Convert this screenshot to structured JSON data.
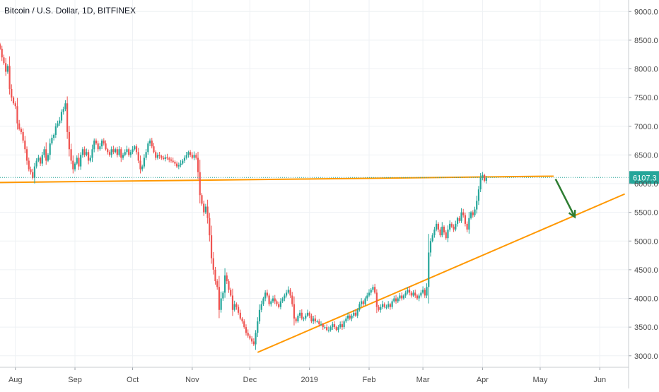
{
  "header": {
    "title": "Bitcoin / U.S. Dollar, 1D, BITFINEX"
  },
  "price_label": {
    "text": "6107.3",
    "color": "#26a69a"
  },
  "colors": {
    "up": "#26a69a",
    "down": "#ef5350",
    "trend": "#ff9800",
    "arrow": "#2e7d32",
    "grid": "#eef1f4",
    "axis_text": "#4a4a4a"
  },
  "chart_data": {
    "type": "candlestick",
    "title": "Bitcoin / U.S. Dollar, 1D, BITFINEX",
    "xlabel": "",
    "ylabel": "",
    "ylim": [
      2800,
      9200
    ],
    "y_ticks": [
      3000,
      3500,
      4000,
      4500,
      5000,
      5500,
      6000,
      6500,
      7000,
      7500,
      8000,
      8500,
      9000
    ],
    "y_tick_labels": [
      "3000.0",
      "3500.0",
      "4000.0",
      "4500.0",
      "5000.0",
      "5500.0",
      "6000.0",
      "6500.0",
      "7000.0",
      "7500.0",
      "8000.0",
      "8500.0",
      "9000.0"
    ],
    "x_range": [
      "2018-07-24",
      "2019-06-16"
    ],
    "x_ticks": [
      {
        "date": "2018-08-01",
        "label": "Aug"
      },
      {
        "date": "2018-09-01",
        "label": "Sep"
      },
      {
        "date": "2018-10-01",
        "label": "Oct"
      },
      {
        "date": "2018-11-01",
        "label": "Nov"
      },
      {
        "date": "2018-12-01",
        "label": "Dec"
      },
      {
        "date": "2019-01-01",
        "label": "2019"
      },
      {
        "date": "2019-02-01",
        "label": "Feb"
      },
      {
        "date": "2019-03-01",
        "label": "Mar"
      },
      {
        "date": "2019-04-01",
        "label": "Apr"
      },
      {
        "date": "2019-05-01",
        "label": "May"
      },
      {
        "date": "2019-06-01",
        "label": "Jun"
      }
    ],
    "start_date": "2018-07-24",
    "closes": [
      8350,
      8200,
      8100,
      7950,
      8050,
      7650,
      7500,
      7400,
      7350,
      7050,
      6950,
      6900,
      6750,
      6600,
      6400,
      6250,
      6200,
      6100,
      6300,
      6400,
      6450,
      6350,
      6500,
      6600,
      6400,
      6500,
      6700,
      6800,
      6850,
      7000,
      7050,
      7100,
      7250,
      7300,
      7400,
      6900,
      6600,
      6400,
      6250,
      6350,
      6450,
      6300,
      6500,
      6600,
      6500,
      6550,
      6400,
      6450,
      6600,
      6750,
      6700,
      6600,
      6650,
      6750,
      6700,
      6600,
      6550,
      6500,
      6600,
      6550,
      6600,
      6500,
      6600,
      6450,
      6500,
      6550,
      6600,
      6500,
      6550,
      6600,
      6650,
      6550,
      6400,
      6250,
      6300,
      6450,
      6550,
      6700,
      6750,
      6650,
      6550,
      6450,
      6500,
      6480,
      6450,
      6430,
      6460,
      6440,
      6420,
      6400,
      6380,
      6350,
      6300,
      6320,
      6350,
      6400,
      6450,
      6500,
      6550,
      6500,
      6450,
      6500,
      6450,
      6200,
      5800,
      5650,
      5500,
      5600,
      5400,
      5100,
      4700,
      4500,
      4300,
      4200,
      3800,
      4000,
      4100,
      4400,
      4300,
      4150,
      4050,
      3800,
      3900,
      3850,
      3750,
      3650,
      3600,
      3500,
      3400,
      3350,
      3300,
      3250,
      3200,
      3400,
      3600,
      3800,
      3900,
      4000,
      4100,
      4050,
      3900,
      3950,
      4000,
      3950,
      3900,
      3850,
      3950,
      4000,
      4050,
      4100,
      4150,
      4050,
      3900,
      3650,
      3600,
      3700,
      3750,
      3650,
      3650,
      3700,
      3750,
      3700,
      3600,
      3650,
      3600,
      3600,
      3550,
      3550,
      3500,
      3500,
      3450,
      3450,
      3500,
      3550,
      3500,
      3450,
      3500,
      3550,
      3500,
      3600,
      3650,
      3700,
      3650,
      3700,
      3750,
      3700,
      3800,
      3900,
      3950,
      3900,
      4000,
      4050,
      4100,
      4150,
      4200,
      4100,
      3850,
      3800,
      3850,
      3900,
      3850,
      3850,
      3900,
      3850,
      3950,
      4000,
      3950,
      4000,
      4050,
      4000,
      4050,
      4100,
      4150,
      4100,
      4050,
      4100,
      4050,
      4000,
      4050,
      4100,
      4150,
      4050,
      4200,
      4800,
      5000,
      5100,
      5200,
      5300,
      5200,
      5100,
      5250,
      5150,
      5050,
      5200,
      5300,
      5250,
      5200,
      5300,
      5400,
      5350,
      5500,
      5450,
      5300,
      5200,
      5400,
      5500,
      5450,
      5550,
      5700,
      5900,
      6100,
      6150,
      6050,
      6100
    ],
    "series": [
      {
        "name": "",
        "values": []
      }
    ],
    "annotations": [
      {
        "type": "trendline",
        "from": {
          "date": "2018-07-24",
          "value": 6020
        },
        "to": {
          "date": "2019-05-08",
          "value": 6130
        }
      },
      {
        "type": "trendline",
        "from": {
          "date": "2018-12-05",
          "value": 3060
        },
        "to": {
          "date": "2019-06-14",
          "value": 5820
        }
      },
      {
        "type": "arrow",
        "from": {
          "date": "2019-05-09",
          "value": 6080
        },
        "to": {
          "date": "2019-05-19",
          "value": 5420
        }
      },
      {
        "type": "price_line",
        "value": 6107.3
      }
    ]
  }
}
